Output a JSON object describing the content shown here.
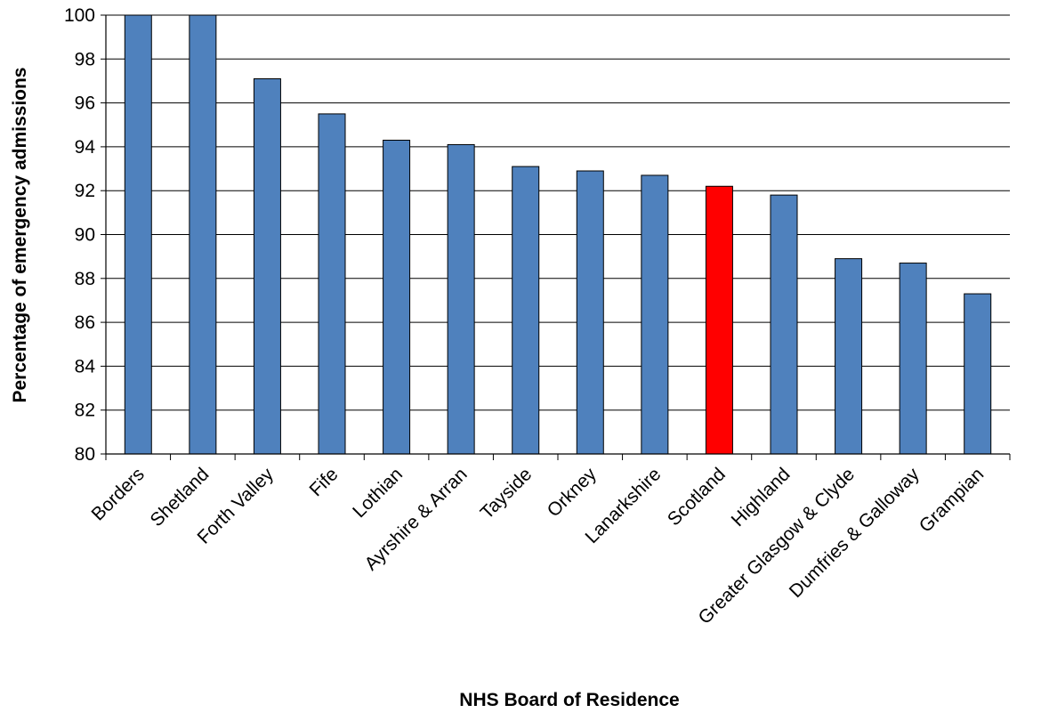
{
  "chart_data": {
    "type": "bar",
    "title": "",
    "xlabel": "NHS Board of Residence",
    "ylabel": "Percentage of emergency admissions",
    "ylim": [
      80,
      100
    ],
    "yticks": [
      80,
      82,
      84,
      86,
      88,
      90,
      92,
      94,
      96,
      98,
      100
    ],
    "grid": "horizontal",
    "categories": [
      "Borders",
      "Shetland",
      "Forth Valley",
      "Fife",
      "Lothian",
      "Ayrshire & Arran",
      "Tayside",
      "Orkney",
      "Lanarkshire",
      "Scotland",
      "Highland",
      "Greater Glasgow & Clyde",
      "Dumfries & Galloway",
      "Grampian"
    ],
    "values": [
      100,
      100,
      97.1,
      95.5,
      94.3,
      94.1,
      93.1,
      92.9,
      92.7,
      92.2,
      91.8,
      88.9,
      88.7,
      87.3
    ],
    "colors": {
      "bar": "#4F81BD",
      "highlight": "#FF0000",
      "highlight_category": "Scotland",
      "grid": "#000000",
      "bar_outline": "#000000"
    }
  }
}
